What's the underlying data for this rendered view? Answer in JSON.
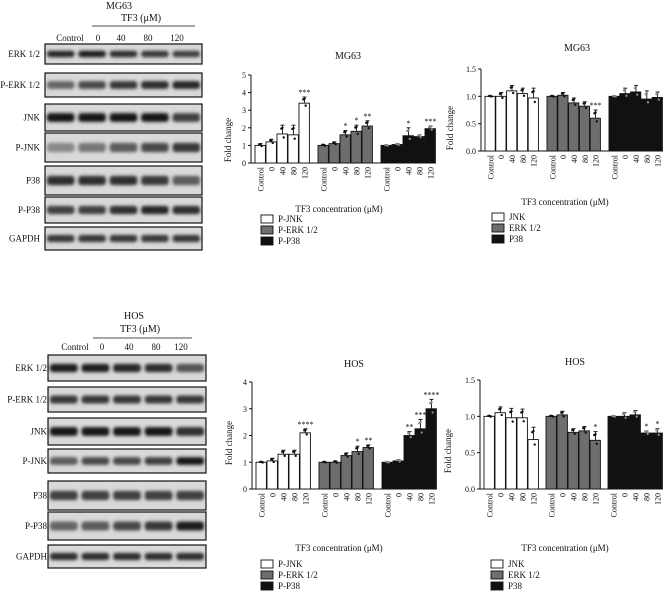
{
  "colors": {
    "white": "#ffffff",
    "gray": "#6e6e6e",
    "black": "#111111",
    "band": "#1c1c1c"
  },
  "blot_panels": [
    {
      "cell_line": "MG63",
      "treatment_label": "TF3 (μM)",
      "lanes": [
        "Control",
        "0",
        "40",
        "80",
        "120"
      ],
      "proteins": [
        "ERK 1/2",
        "P-ERK 1/2",
        "JNK",
        "P-JNK",
        "P38",
        "P-P38",
        "GAPDH"
      ]
    },
    {
      "cell_line": "HOS",
      "treatment_label": "TF3 (μM)",
      "lanes": [
        "Control",
        "0",
        "40",
        "80",
        "120"
      ],
      "proteins": [
        "ERK 1/2",
        "P-ERK 1/2",
        "JNK",
        "P-JNK",
        "P38",
        "P-P38",
        "GAPDH"
      ]
    }
  ],
  "chart_data": [
    {
      "type": "bar",
      "title": "MG63",
      "ylabel": "Fold change",
      "xlabel": "TF3 concentration (μM)",
      "ylim": [
        0,
        5
      ],
      "yticks": [
        0,
        1,
        2,
        3,
        4,
        5
      ],
      "categories": [
        "Control",
        "0",
        "40",
        "80",
        "120"
      ],
      "series": [
        {
          "name": "P-JNK",
          "color": "white",
          "values": [
            1.0,
            1.2,
            1.65,
            1.6,
            3.4
          ],
          "errors": [
            0.1,
            0.15,
            0.5,
            0.55,
            0.35
          ],
          "sig": [
            "",
            "",
            "",
            "",
            "***"
          ]
        },
        {
          "name": "P-ERK 1/2",
          "color": "gray",
          "values": [
            1.0,
            1.1,
            1.6,
            1.8,
            2.1
          ],
          "errors": [
            0.05,
            0.1,
            0.25,
            0.35,
            0.3
          ],
          "sig": [
            "",
            "",
            "*",
            "*",
            "**"
          ]
        },
        {
          "name": "P-P38",
          "color": "black",
          "values": [
            1.0,
            1.05,
            1.55,
            1.5,
            1.95
          ],
          "errors": [
            0.03,
            0.05,
            0.45,
            0.1,
            0.15
          ],
          "sig": [
            "",
            "",
            "*",
            "",
            "***"
          ]
        }
      ]
    },
    {
      "type": "bar",
      "title": "MG63",
      "ylabel": "Fold change",
      "xlabel": "TF3 concentration (μM)",
      "ylim": [
        0,
        1.5
      ],
      "yticks": [
        0,
        0.5,
        1.0,
        1.5
      ],
      "categories": [
        "Control",
        "0",
        "40",
        "80",
        "120"
      ],
      "series": [
        {
          "name": "JNK",
          "color": "white",
          "values": [
            1.0,
            1.0,
            1.1,
            1.05,
            0.97
          ],
          "errors": [
            0.01,
            0.07,
            0.1,
            0.1,
            0.18
          ],
          "sig": [
            "",
            "",
            "",
            "",
            ""
          ]
        },
        {
          "name": "ERK 1/2",
          "color": "gray",
          "values": [
            1.0,
            1.02,
            0.88,
            0.82,
            0.6
          ],
          "errors": [
            0.01,
            0.05,
            0.09,
            0.08,
            0.15
          ],
          "sig": [
            "",
            "",
            "",
            "",
            "***"
          ]
        },
        {
          "name": "P38",
          "color": "black",
          "values": [
            1.0,
            1.05,
            1.08,
            0.95,
            0.98
          ],
          "errors": [
            0.01,
            0.1,
            0.12,
            0.15,
            0.1
          ],
          "sig": [
            "",
            "",
            "",
            "",
            ""
          ]
        }
      ]
    },
    {
      "type": "bar",
      "title": "HOS",
      "ylabel": "Fold change",
      "xlabel": "TF3 concentration (μM)",
      "ylim": [
        0,
        4
      ],
      "yticks": [
        0,
        1,
        2,
        3,
        4
      ],
      "categories": [
        "Control",
        "0",
        "40",
        "80",
        "120"
      ],
      "series": [
        {
          "name": "P-JNK",
          "color": "white",
          "values": [
            1.0,
            1.05,
            1.3,
            1.3,
            2.1
          ],
          "errors": [
            0.02,
            0.1,
            0.15,
            0.15,
            0.15
          ],
          "sig": [
            "",
            "",
            "",
            "",
            "****"
          ]
        },
        {
          "name": "P-ERK 1/2",
          "color": "gray",
          "values": [
            1.0,
            1.0,
            1.25,
            1.4,
            1.55
          ],
          "errors": [
            0.02,
            0.05,
            0.1,
            0.2,
            0.1
          ],
          "sig": [
            "",
            "",
            "",
            "*",
            "**"
          ]
        },
        {
          "name": "P-P38",
          "color": "black",
          "values": [
            1.0,
            1.05,
            2.0,
            2.25,
            3.0
          ],
          "errors": [
            0.02,
            0.05,
            0.15,
            0.35,
            0.35
          ],
          "sig": [
            "",
            "",
            "**",
            "***",
            "****"
          ]
        }
      ]
    },
    {
      "type": "bar",
      "title": "HOS",
      "ylabel": "Fold change",
      "xlabel": "TF3 concentration (μM)",
      "ylim": [
        0,
        1.5
      ],
      "yticks": [
        0,
        0.5,
        1.0,
        1.5
      ],
      "categories": [
        "Control",
        "0",
        "40",
        "80",
        "120"
      ],
      "series": [
        {
          "name": "JNK",
          "color": "white",
          "values": [
            1.0,
            1.05,
            0.98,
            0.98,
            0.68
          ],
          "errors": [
            0.01,
            0.08,
            0.13,
            0.12,
            0.17
          ],
          "sig": [
            "",
            "",
            "",
            "",
            ""
          ]
        },
        {
          "name": "ERK 1/2",
          "color": "gray",
          "values": [
            1.0,
            1.02,
            0.78,
            0.8,
            0.67
          ],
          "errors": [
            0.01,
            0.05,
            0.05,
            0.06,
            0.12
          ],
          "sig": [
            "",
            "",
            "",
            "",
            "*"
          ]
        },
        {
          "name": "P38",
          "color": "black",
          "values": [
            1.0,
            1.0,
            1.02,
            0.77,
            0.77
          ],
          "errors": [
            0.01,
            0.05,
            0.06,
            0.03,
            0.06
          ],
          "sig": [
            "",
            "",
            "",
            "*",
            "*"
          ]
        }
      ]
    }
  ]
}
